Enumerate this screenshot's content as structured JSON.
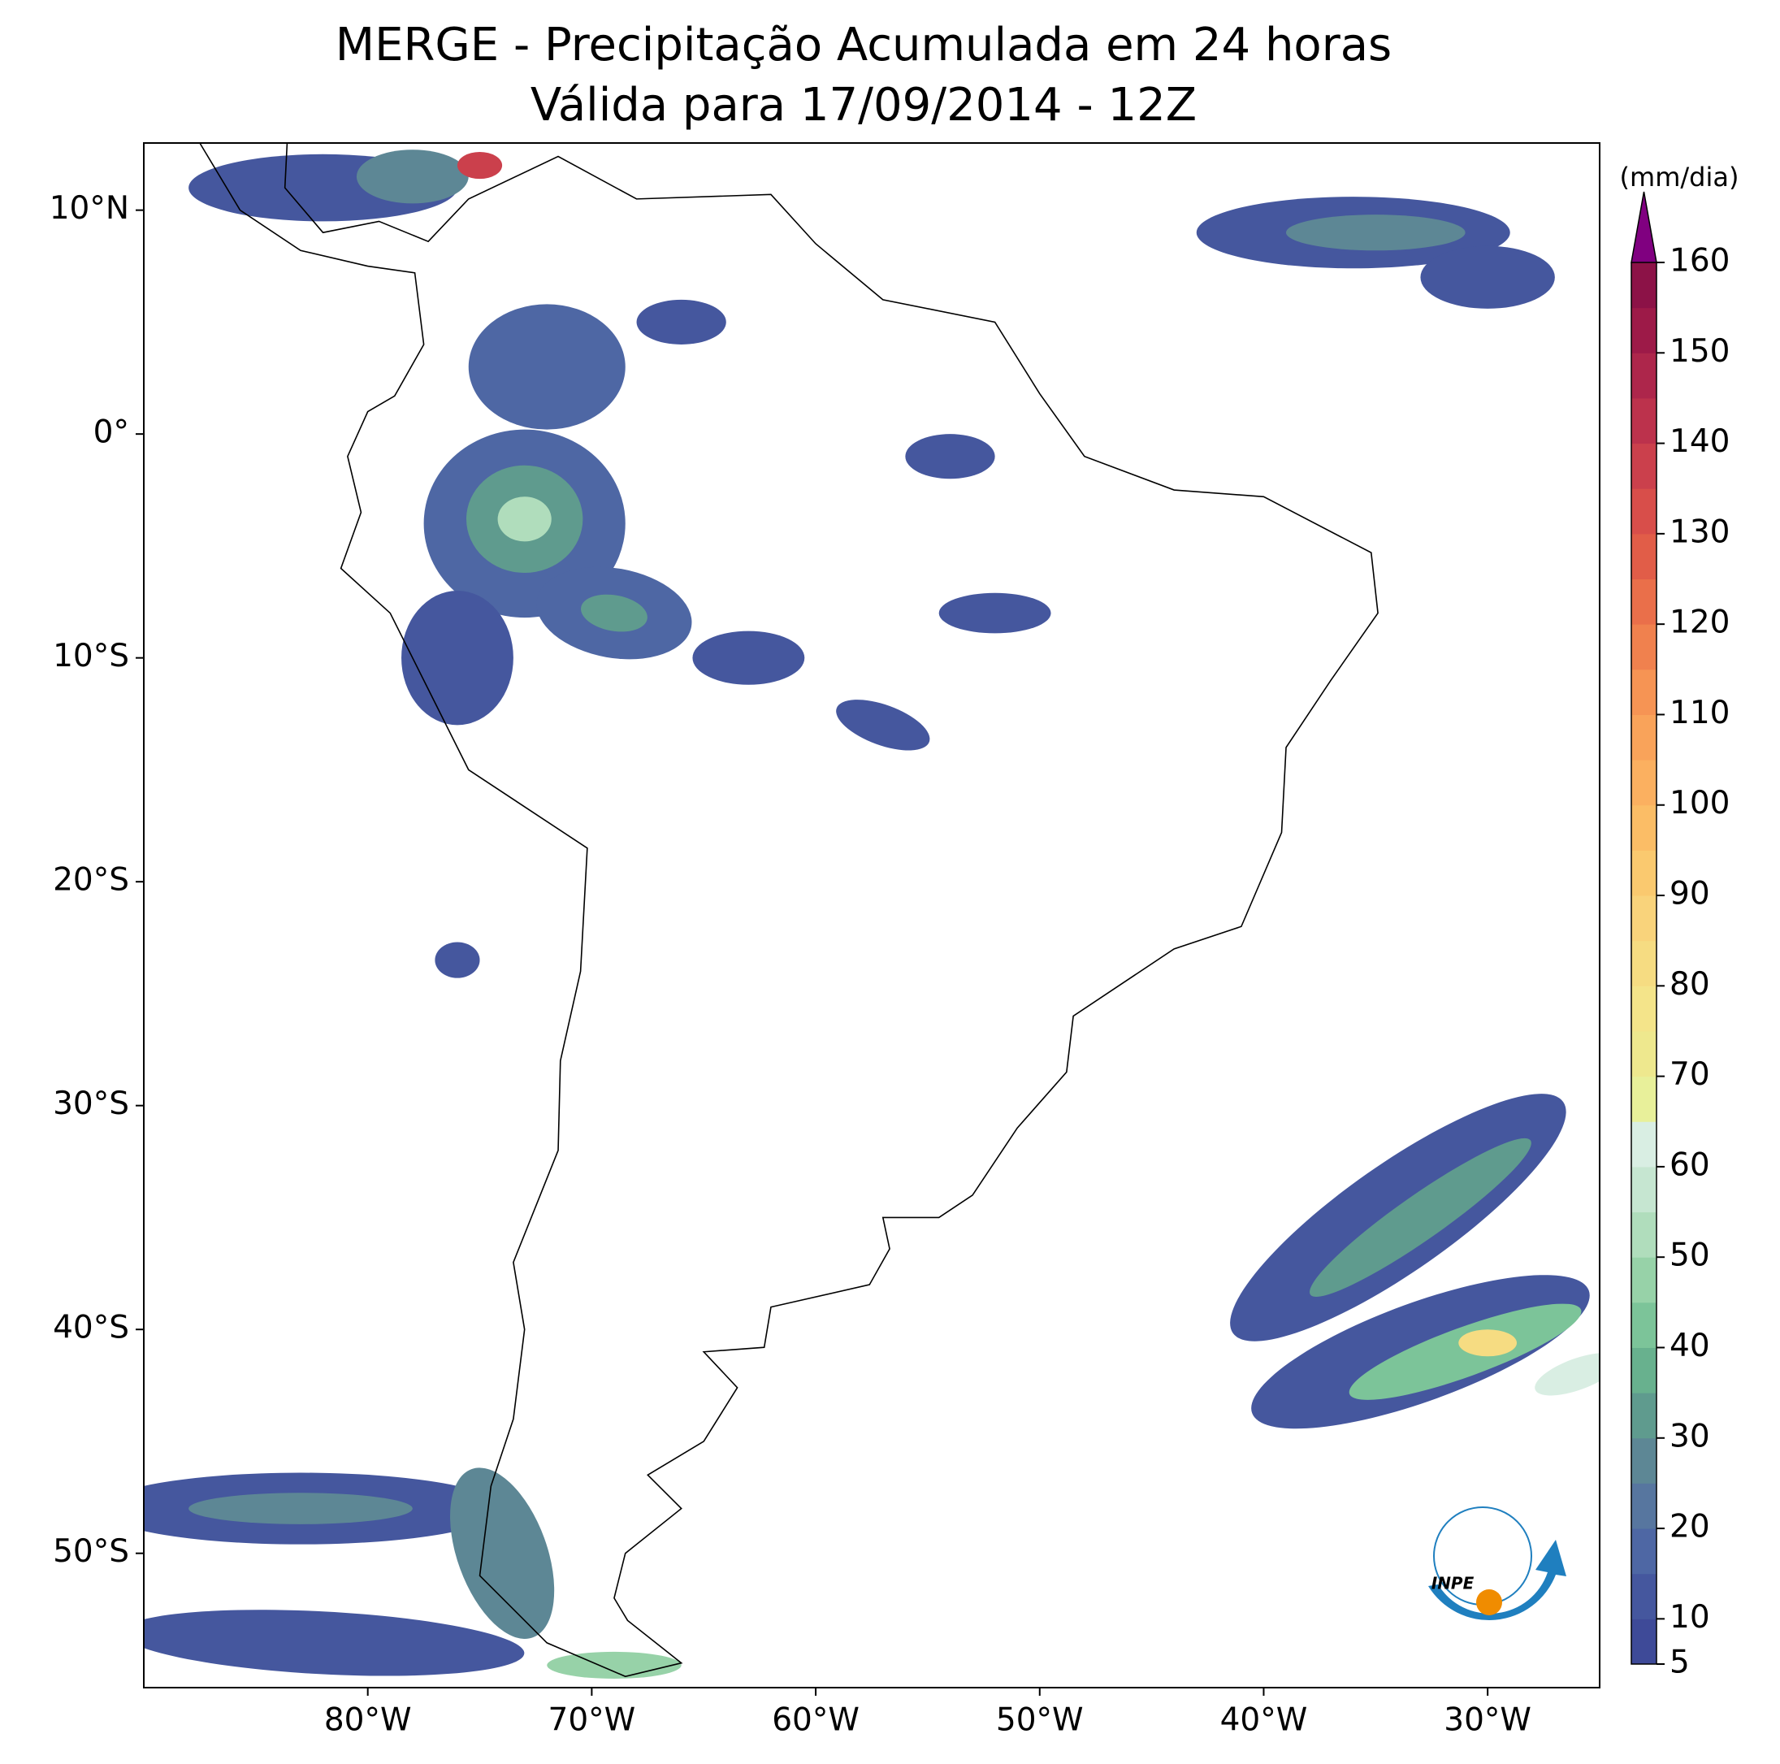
{
  "title": [
    "MERGE - Precipitação Acumulada em 24 horas",
    "Válida para 17/09/2014 - 12Z"
  ],
  "map": {
    "xlim": [
      -90,
      -25
    ],
    "ylim": [
      -56,
      13
    ],
    "xticks": [
      {
        "value": -80,
        "label": "80°W"
      },
      {
        "value": -70,
        "label": "70°W"
      },
      {
        "value": -60,
        "label": "60°W"
      },
      {
        "value": -50,
        "label": "50°W"
      },
      {
        "value": -40,
        "label": "40°W"
      },
      {
        "value": -30,
        "label": "30°W"
      }
    ],
    "yticks": [
      {
        "value": 10,
        "label": "10°N"
      },
      {
        "value": 0,
        "label": "0°"
      },
      {
        "value": -10,
        "label": "10°S"
      },
      {
        "value": -20,
        "label": "20°S"
      },
      {
        "value": -30,
        "label": "30°S"
      },
      {
        "value": -40,
        "label": "40°S"
      },
      {
        "value": -50,
        "label": "50°S"
      }
    ]
  },
  "colorbar": {
    "label": "(mm/dia)",
    "bounds": [
      5,
      10,
      15,
      20,
      25,
      30,
      35,
      40,
      45,
      50,
      55,
      60,
      65,
      70,
      75,
      80,
      85,
      90,
      95,
      100,
      105,
      110,
      115,
      120,
      125,
      130,
      135,
      140,
      145,
      150,
      155,
      160
    ],
    "colors": [
      "#3e4a98",
      "#45579e",
      "#4e67a4",
      "#57769f",
      "#5d8795",
      "#5f9b8e",
      "#68b18e",
      "#7cc499",
      "#97d2a8",
      "#b0ddbc",
      "#c6e6d1",
      "#d9eee3",
      "#e8f09a",
      "#eee88e",
      "#f4e48a",
      "#f6dc82",
      "#f9d37b",
      "#fac96f",
      "#fbbd66",
      "#fbb060",
      "#f9a35a",
      "#f69454",
      "#f0814e",
      "#ea6f4a",
      "#e15d48",
      "#d84e4a",
      "#cb404c",
      "#bc324c",
      "#ad264b",
      "#9d1a48",
      "#8c1247"
    ],
    "extend_color": "#800080",
    "ticks": [
      5,
      10,
      20,
      30,
      40,
      50,
      60,
      70,
      80,
      90,
      100,
      110,
      120,
      130,
      140,
      150,
      160
    ]
  },
  "logo": "INPE"
}
